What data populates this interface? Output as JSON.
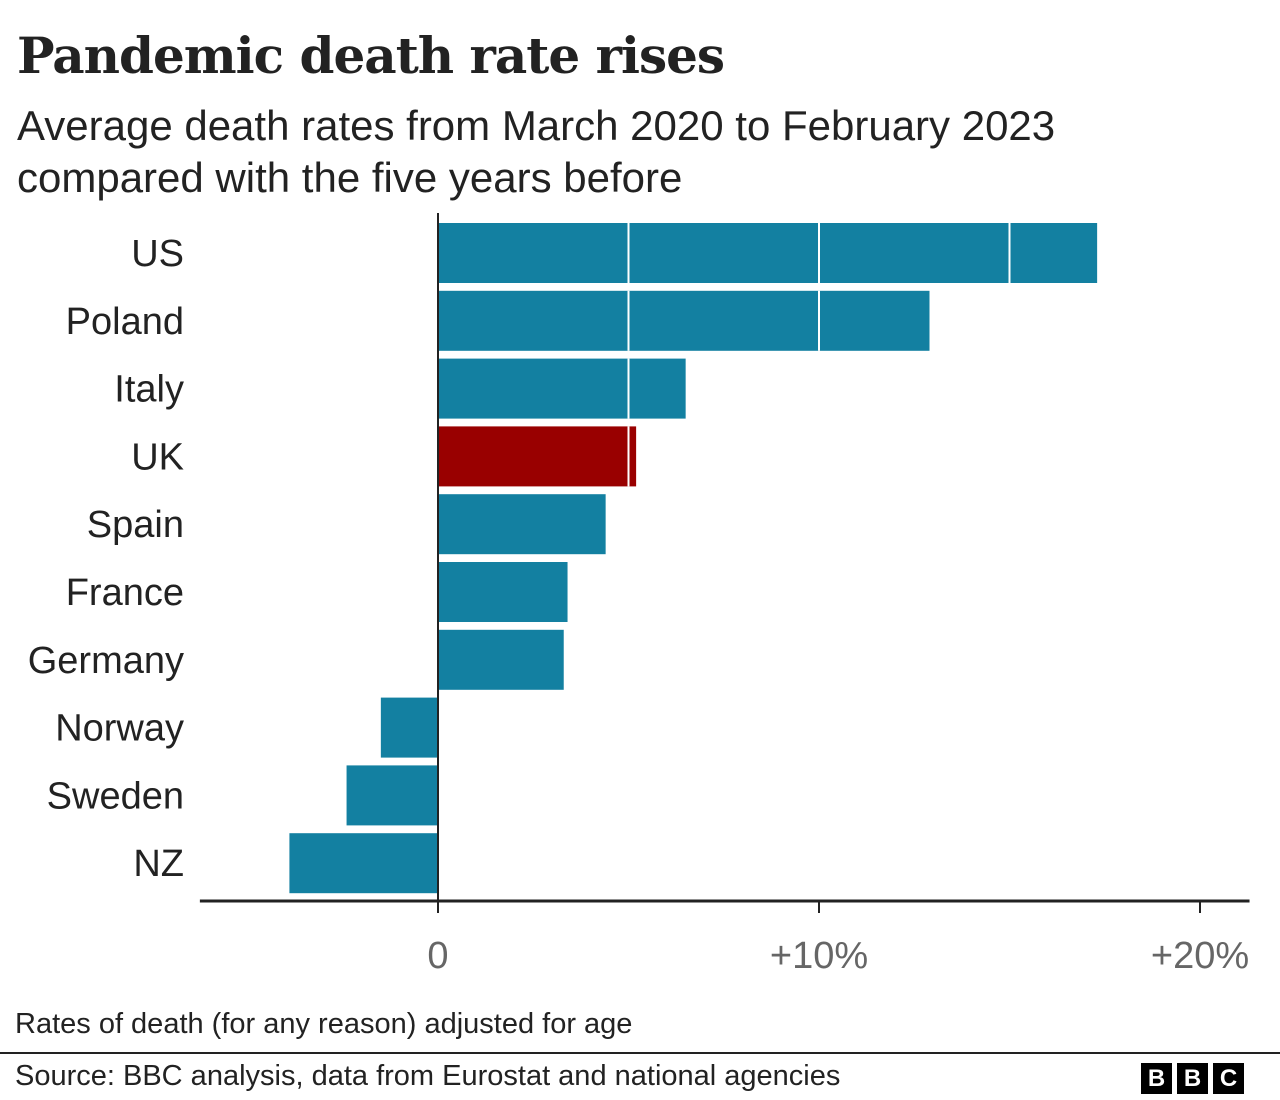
{
  "title": "Pandemic death rate rises",
  "subtitle": "Average death rates from March 2020 to February 2023 compared with the five years before",
  "note": "Rates of death (for any reason) adjusted for age",
  "source": "Source: BBC analysis, data from Eurostat and national agencies",
  "logo": "BBC",
  "colors": {
    "default": "#1380A1",
    "highlight": "#990000",
    "axis": "#222222",
    "grid": "#ffffff"
  },
  "chart_data": {
    "type": "bar",
    "orientation": "horizontal",
    "title": "Pandemic death rate rises",
    "subtitle": "Average death rates from March 2020 to February 2023 compared with the five years before",
    "categories": [
      "US",
      "Poland",
      "Italy",
      "UK",
      "Spain",
      "France",
      "Germany",
      "Norway",
      "Sweden",
      "NZ"
    ],
    "values": [
      17.3,
      12.9,
      6.5,
      5.2,
      4.4,
      3.4,
      3.3,
      -1.5,
      -2.4,
      -3.9
    ],
    "highlight": "UK",
    "unit": "%",
    "xlim": [
      -6.25,
      21.3
    ],
    "xticks": [
      0,
      10,
      20
    ],
    "xtick_labels": [
      "0",
      "+10%",
      "+20%"
    ],
    "grid": true,
    "gridlines": [
      5,
      10,
      15
    ],
    "legend": "none"
  }
}
